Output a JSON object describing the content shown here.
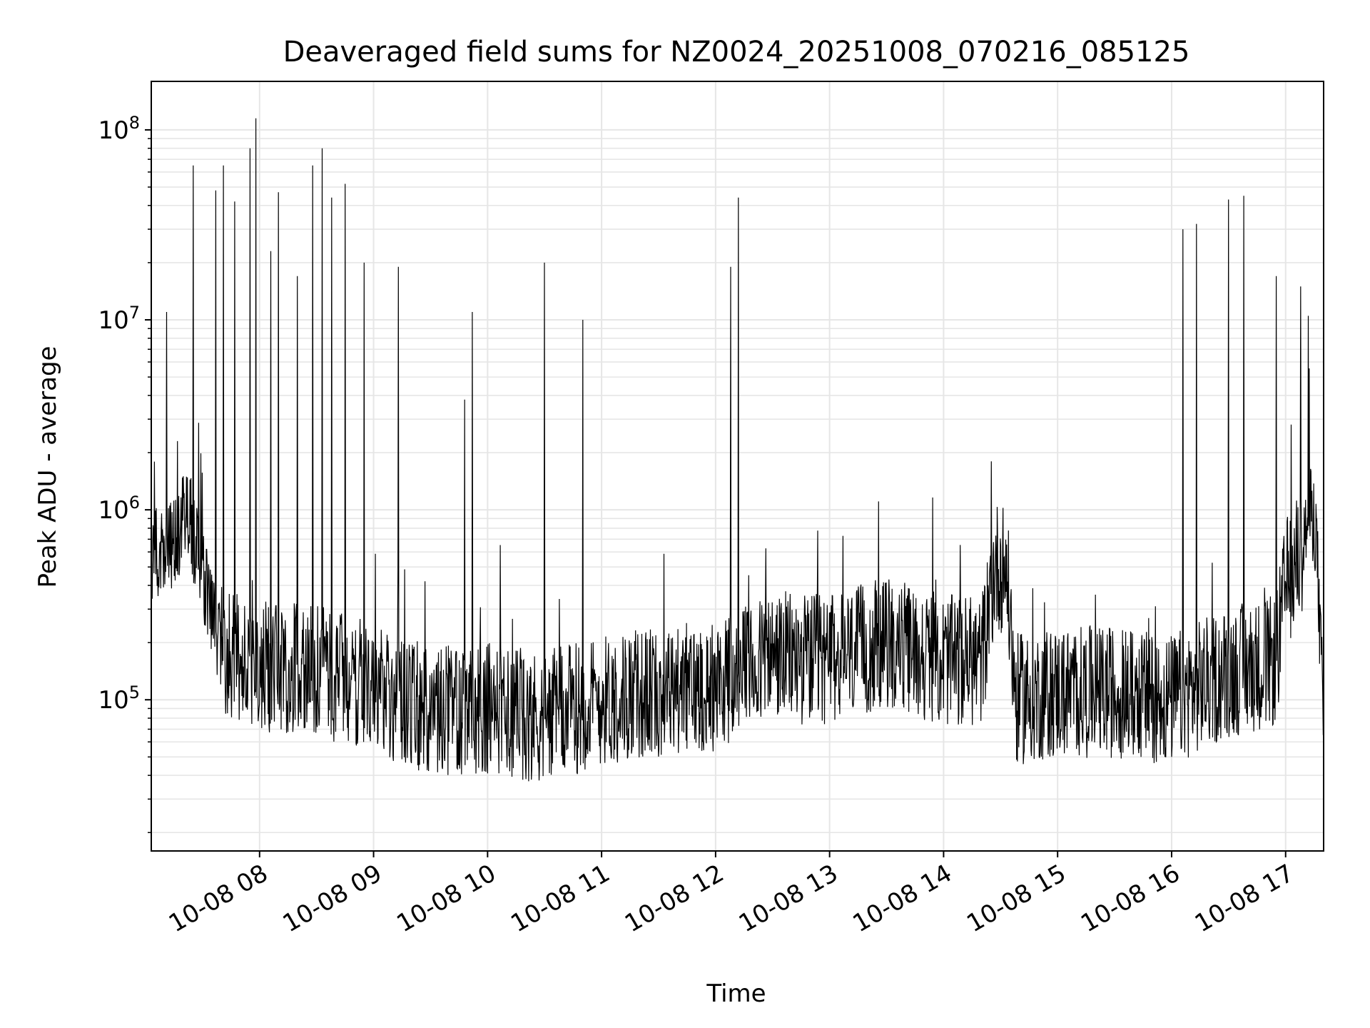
{
  "chart_data": {
    "type": "line",
    "title": "Deaveraged field sums for NZ0024_20251008_070216_085125",
    "xlabel": "Time",
    "ylabel": "Peak ADU - average",
    "yscale": "log",
    "ylim": [
      16000,
      180000000
    ],
    "xlim": [
      "2025-10-08 07:03",
      "2025-10-08 17:20"
    ],
    "grid": true,
    "legend": "none",
    "line_color": "#000000",
    "grid_color": "#e6e6e6",
    "x_ticks": [
      {
        "value": "2025-10-08 08:00",
        "label": "10-08 08"
      },
      {
        "value": "2025-10-08 09:00",
        "label": "10-08 09"
      },
      {
        "value": "2025-10-08 10:00",
        "label": "10-08 10"
      },
      {
        "value": "2025-10-08 11:00",
        "label": "10-08 11"
      },
      {
        "value": "2025-10-08 12:00",
        "label": "10-08 12"
      },
      {
        "value": "2025-10-08 13:00",
        "label": "10-08 13"
      },
      {
        "value": "2025-10-08 14:00",
        "label": "10-08 14"
      },
      {
        "value": "2025-10-08 15:00",
        "label": "10-08 15"
      },
      {
        "value": "2025-10-08 16:00",
        "label": "10-08 16"
      },
      {
        "value": "2025-10-08 17:00",
        "label": "10-08 17"
      }
    ],
    "y_ticks": [
      {
        "value": 100000,
        "base": "10",
        "exp": "5"
      },
      {
        "value": 1000000,
        "base": "10",
        "exp": "6"
      },
      {
        "value": 10000000,
        "base": "10",
        "exp": "7"
      },
      {
        "value": 100000000,
        "base": "10",
        "exp": "8"
      }
    ],
    "baseline": [
      [
        "2025-10-08 07:03",
        600000
      ],
      [
        "2025-10-08 07:15",
        650000
      ],
      [
        "2025-10-08 07:22",
        1000000
      ],
      [
        "2025-10-08 07:30",
        450000
      ],
      [
        "2025-10-08 07:40",
        180000
      ],
      [
        "2025-10-08 08:00",
        150000
      ],
      [
        "2025-10-08 08:30",
        140000
      ],
      [
        "2025-10-08 09:00",
        120000
      ],
      [
        "2025-10-08 09:30",
        85000
      ],
      [
        "2025-10-08 10:00",
        90000
      ],
      [
        "2025-10-08 10:30",
        80000
      ],
      [
        "2025-10-08 11:00",
        100000
      ],
      [
        "2025-10-08 11:30",
        110000
      ],
      [
        "2025-10-08 12:00",
        120000
      ],
      [
        "2025-10-08 12:30",
        170000
      ],
      [
        "2025-10-08 13:00",
        160000
      ],
      [
        "2025-10-08 13:30",
        200000
      ],
      [
        "2025-10-08 14:00",
        160000
      ],
      [
        "2025-10-08 14:20",
        160000
      ],
      [
        "2025-10-08 14:27",
        500000
      ],
      [
        "2025-10-08 14:33",
        500000
      ],
      [
        "2025-10-08 14:38",
        100000
      ],
      [
        "2025-10-08 15:00",
        110000
      ],
      [
        "2025-10-08 15:30",
        110000
      ],
      [
        "2025-10-08 16:00",
        100000
      ],
      [
        "2025-10-08 16:30",
        140000
      ],
      [
        "2025-10-08 16:55",
        160000
      ],
      [
        "2025-10-08 17:00",
        400000
      ],
      [
        "2025-10-08 17:08",
        600000
      ],
      [
        "2025-10-08 17:13",
        1000000
      ],
      [
        "2025-10-08 17:16",
        800000
      ],
      [
        "2025-10-08 17:20",
        70000
      ]
    ],
    "spikes": [
      [
        "2025-10-08 07:11",
        11000000
      ],
      [
        "2025-10-08 07:25",
        65000000
      ],
      [
        "2025-10-08 07:37",
        48000000
      ],
      [
        "2025-10-08 07:41",
        65000000
      ],
      [
        "2025-10-08 07:47",
        42000000
      ],
      [
        "2025-10-08 07:55",
        80000000
      ],
      [
        "2025-10-08 07:58",
        115000000
      ],
      [
        "2025-10-08 08:06",
        23000000
      ],
      [
        "2025-10-08 08:10",
        47000000
      ],
      [
        "2025-10-08 08:20",
        17000000
      ],
      [
        "2025-10-08 08:28",
        65000000
      ],
      [
        "2025-10-08 08:33",
        80000000
      ],
      [
        "2025-10-08 08:38",
        44000000
      ],
      [
        "2025-10-08 08:45",
        52000000
      ],
      [
        "2025-10-08 08:55",
        20000000
      ],
      [
        "2025-10-08 09:13",
        19000000
      ],
      [
        "2025-10-08 09:48",
        3800000
      ],
      [
        "2025-10-08 09:52",
        11000000
      ],
      [
        "2025-10-08 10:30",
        20000000
      ],
      [
        "2025-10-08 10:50",
        10000000
      ],
      [
        "2025-10-08 12:08",
        19000000
      ],
      [
        "2025-10-08 12:12",
        44000000
      ],
      [
        "2025-10-08 14:25",
        1800000
      ],
      [
        "2025-10-08 16:06",
        30000000
      ],
      [
        "2025-10-08 16:13",
        32000000
      ],
      [
        "2025-10-08 16:30",
        43000000
      ],
      [
        "2025-10-08 16:38",
        45000000
      ],
      [
        "2025-10-08 16:55",
        17000000
      ],
      [
        "2025-10-08 17:08",
        15000000
      ],
      [
        "2025-10-08 17:12",
        10500000
      ]
    ]
  }
}
